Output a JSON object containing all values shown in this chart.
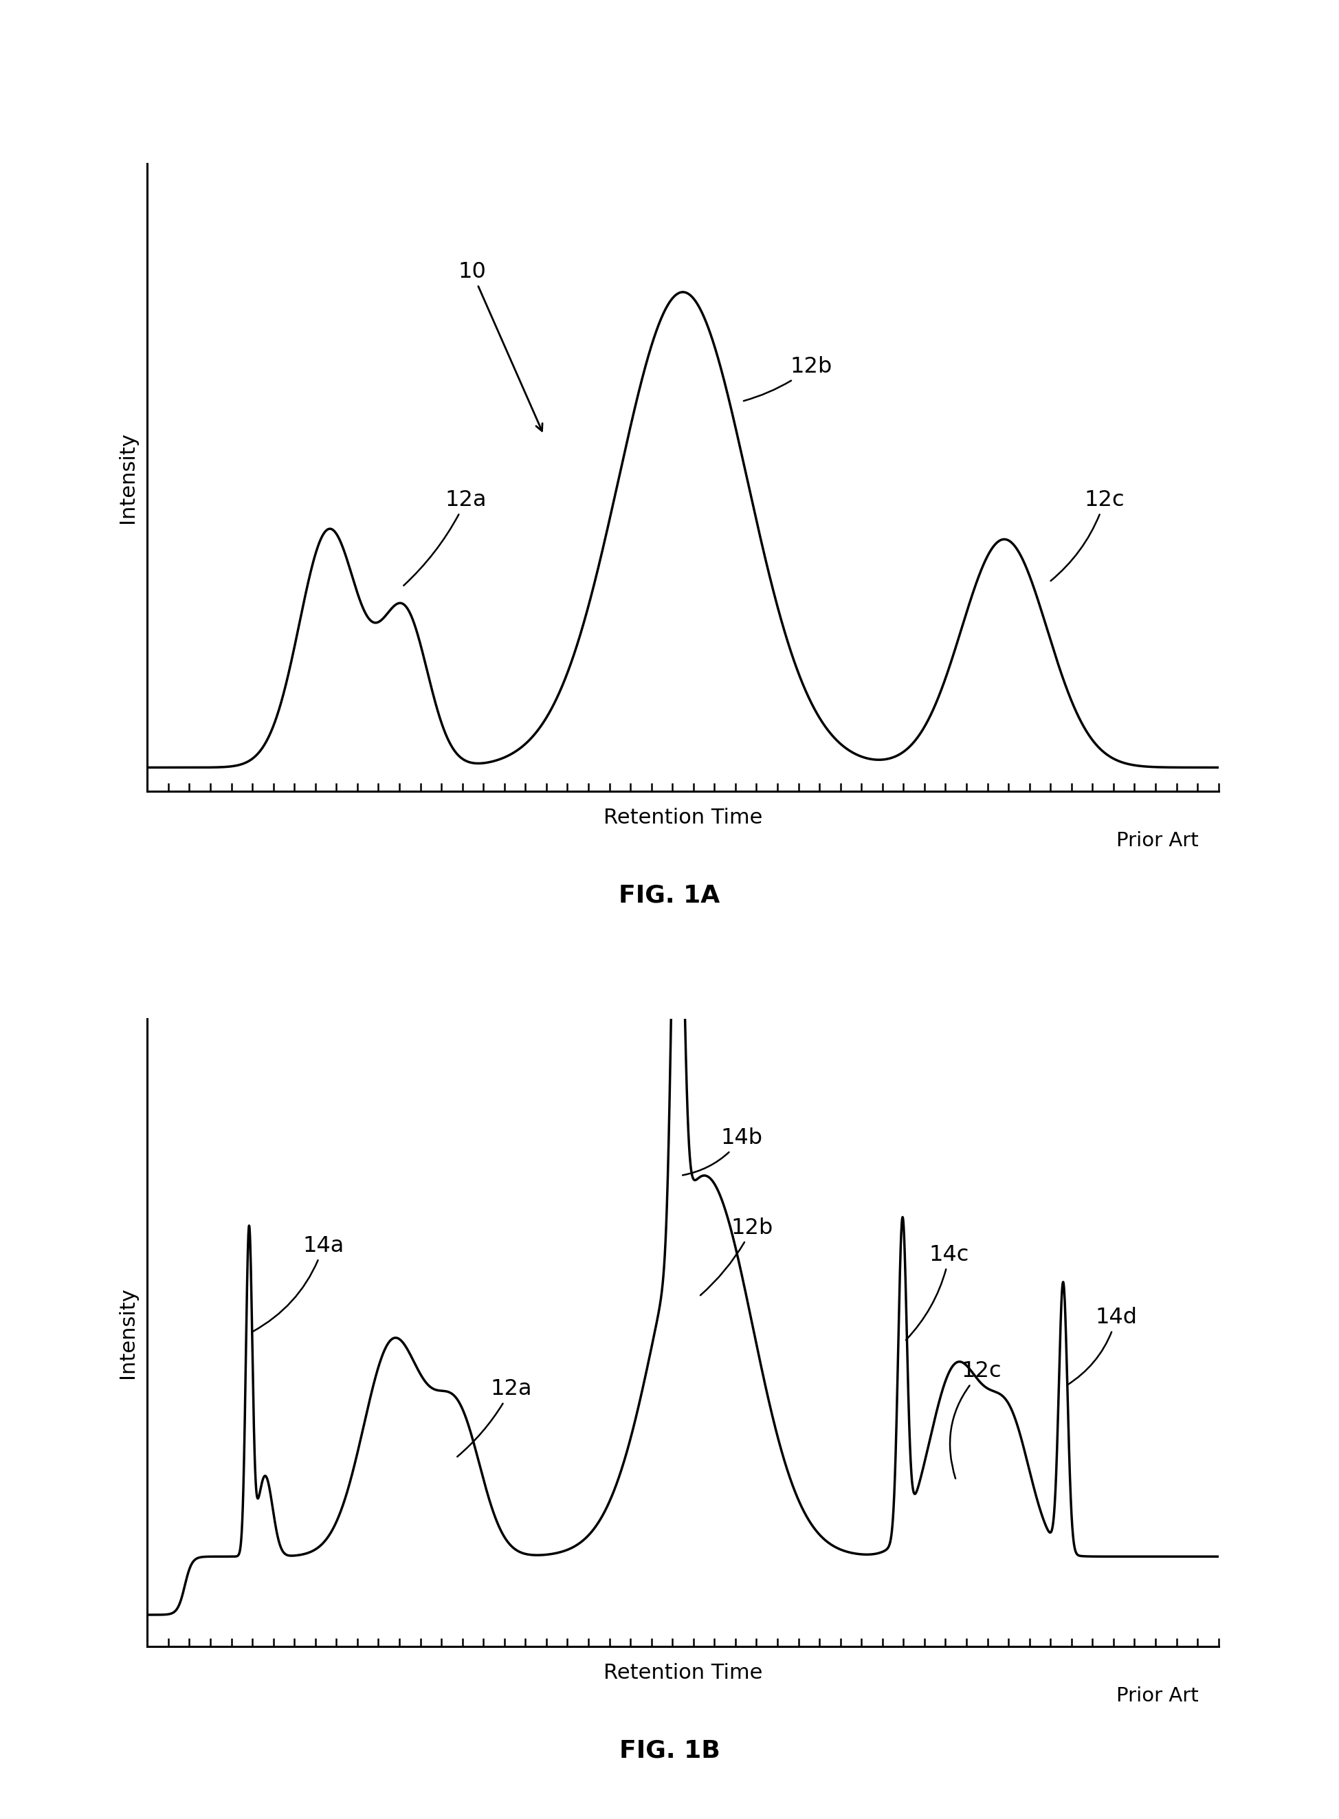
{
  "fig_width": 19.48,
  "fig_height": 26.46,
  "bg_color": "#ffffff",
  "line_color": "#000000",
  "line_width": 2.5,
  "fig1a": {
    "title": "FIG. 1A",
    "ylabel": "Intensity",
    "xlabel": "Retention Time",
    "prior_art": "Prior Art",
    "label_10": "10",
    "label_12a": "12a",
    "label_12b": "12b",
    "label_12c": "12c"
  },
  "fig1b": {
    "title": "FIG. 1B",
    "ylabel": "Intensity",
    "xlabel": "Retention Time",
    "prior_art": "Prior Art",
    "label_14a": "14a",
    "label_12a": "12a",
    "label_14b": "14b",
    "label_12b": "12b",
    "label_14c": "14c",
    "label_12c": "12c",
    "label_14d": "14d"
  }
}
